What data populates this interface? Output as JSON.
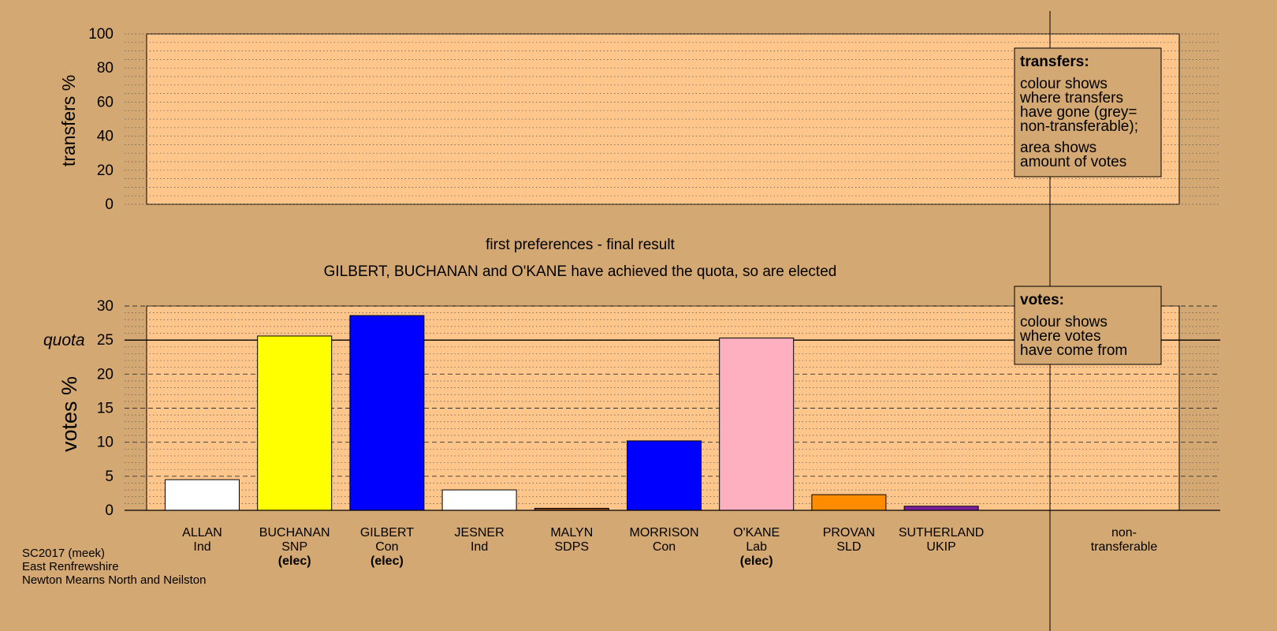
{
  "colors": {
    "background": "#d4a872",
    "plot_area": "#ffc68c",
    "legend_box": "#d4a872"
  },
  "chart_data": [
    {
      "type": "area",
      "ylabel": "transfers %",
      "ylim": [
        0,
        100
      ],
      "yticks": [
        0,
        20,
        40,
        60,
        80,
        100
      ],
      "grid": "dotted",
      "values": []
    },
    {
      "type": "bar",
      "title": "first preferences - final result",
      "subtitle": "GILBERT, BUCHANAN and O'KANE have achieved the quota, so are elected",
      "ylabel": "votes %",
      "ylim": [
        0,
        30
      ],
      "yticks": [
        0,
        5,
        10,
        15,
        20,
        25,
        30
      ],
      "quota": 25,
      "quota_label": "quota",
      "categories": [
        "ALLAN",
        "BUCHANAN",
        "GILBERT",
        "JESNER",
        "MALYN",
        "MORRISON",
        "O'KANE",
        "PROVAN",
        "SUTHERLAND"
      ],
      "parties": [
        "Ind",
        "SNP",
        "Con",
        "Ind",
        "SDPS",
        "Con",
        "Lab",
        "SLD",
        "UKIP"
      ],
      "elected": [
        "",
        "(elec)",
        "(elec)",
        "",
        "",
        "",
        "(elec)",
        "",
        ""
      ],
      "values": [
        4.5,
        25.6,
        28.6,
        3.0,
        0.3,
        10.2,
        25.3,
        2.3,
        0.6
      ],
      "bar_colors": [
        "#ffffff",
        "#ffff00",
        "#0000ff",
        "#ffffff",
        "#8b4513",
        "#0000ff",
        "#ffb0c0",
        "#ff8c00",
        "#7a1fa0"
      ],
      "extra_category": [
        "non-",
        "transferable"
      ]
    }
  ],
  "legend_transfers": {
    "title": "transfers:",
    "lines1": [
      "colour shows",
      "where transfers",
      "have gone (grey=",
      "non-transferable);"
    ],
    "lines2": [
      "area shows",
      "amount of votes"
    ]
  },
  "legend_votes": {
    "title": "votes:",
    "lines": [
      "colour shows",
      "where votes",
      "have come from"
    ]
  },
  "footer": [
    "SC2017 (meek)",
    "East Renfrewshire",
    "Newton Mearns North and Neilston"
  ]
}
